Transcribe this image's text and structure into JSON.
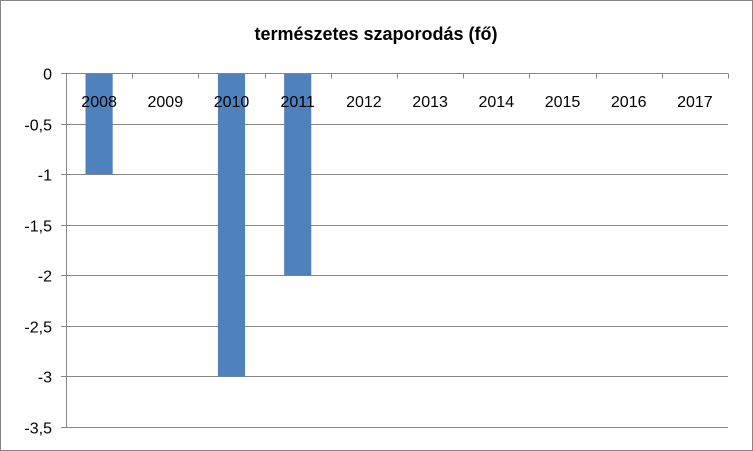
{
  "chart_data": {
    "type": "bar",
    "title": "természetes szaporodás (fő)",
    "xlabel": "",
    "ylabel": "",
    "categories": [
      "2008",
      "2009",
      "2010",
      "2011",
      "2012",
      "2013",
      "2014",
      "2015",
      "2016",
      "2017"
    ],
    "values": [
      -1,
      0,
      -3,
      -2,
      0,
      0,
      0,
      0,
      0,
      0
    ],
    "ylim": [
      -3.5,
      0
    ],
    "yticks": [
      0,
      -0.5,
      -1,
      -1.5,
      -2,
      -2.5,
      -3,
      -3.5
    ],
    "ytick_labels": [
      "0",
      "-0,5",
      "-1",
      "-1,5",
      "-2",
      "-2,5",
      "-3",
      "-3,5"
    ],
    "grid": true,
    "legend": "none",
    "colors": {
      "bar": "#4f81bd",
      "grid": "#868686",
      "axis": "#868686",
      "border": "#868686"
    }
  }
}
